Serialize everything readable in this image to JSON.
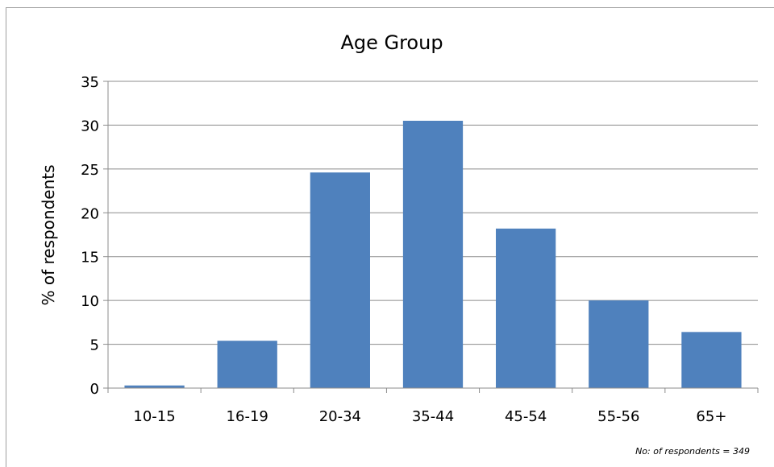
{
  "chart_data": {
    "type": "bar",
    "title": "Age Group",
    "xlabel": "",
    "ylabel": "% of respondents",
    "categories": [
      "10-15",
      "16-19",
      "20-34",
      "35-44",
      "45-54",
      "55-56",
      "65+"
    ],
    "values": [
      0.3,
      5.4,
      24.6,
      30.5,
      18.2,
      10.0,
      6.4
    ],
    "ylim": [
      0,
      35
    ],
    "yticks": [
      0,
      5,
      10,
      15,
      20,
      25,
      30,
      35
    ],
    "grid": true,
    "legend": "none",
    "bar_color": "#4f81bd",
    "annotation": "No: of respondents = 349"
  }
}
